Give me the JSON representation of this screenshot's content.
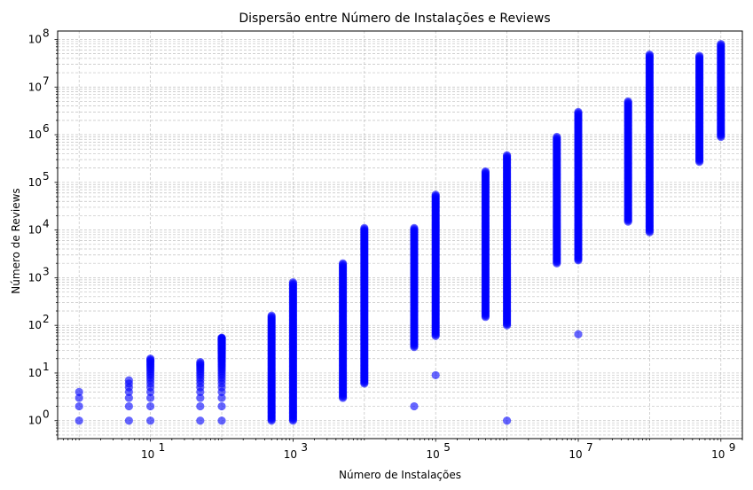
{
  "chart_data": {
    "type": "scatter",
    "title": "Dispersão entre Número de Instalações e Reviews",
    "xlabel": "Número de Instalações",
    "ylabel": "Número de Reviews",
    "xscale": "log",
    "yscale": "log",
    "xlim": [
      0.5,
      2000000000
    ],
    "ylim": [
      0.42,
      150000000
    ],
    "x_ticks": [
      {
        "value": 10,
        "base": "10",
        "exp": "1"
      },
      {
        "value": 1000,
        "base": "10",
        "exp": "3"
      },
      {
        "value": 100000,
        "base": "10",
        "exp": "5"
      },
      {
        "value": 10000000,
        "base": "10",
        "exp": "7"
      },
      {
        "value": 1000000000,
        "base": "10",
        "exp": "9"
      }
    ],
    "y_ticks": [
      {
        "value": 1,
        "base": "10",
        "exp": "0"
      },
      {
        "value": 10,
        "base": "10",
        "exp": "1"
      },
      {
        "value": 100,
        "base": "10",
        "exp": "2"
      },
      {
        "value": 1000,
        "base": "10",
        "exp": "3"
      },
      {
        "value": 10000,
        "base": "10",
        "exp": "4"
      },
      {
        "value": 100000,
        "base": "10",
        "exp": "5"
      },
      {
        "value": 1000000,
        "base": "10",
        "exp": "6"
      },
      {
        "value": 10000000,
        "base": "10",
        "exp": "7"
      },
      {
        "value": 100000000,
        "base": "10",
        "exp": "8"
      }
    ],
    "grid": true,
    "grid_style": "dashed",
    "marker_color": "#0000ff",
    "marker_alpha": 0.6,
    "series": [
      {
        "x": 1,
        "y_min": 1,
        "y_max": 4,
        "outliers": []
      },
      {
        "x": 5,
        "y_min": 1,
        "y_max": 7,
        "outliers": []
      },
      {
        "x": 10,
        "y_min": 1,
        "y_max": 20,
        "outliers": []
      },
      {
        "x": 50,
        "y_min": 1,
        "y_max": 17,
        "outliers": []
      },
      {
        "x": 100,
        "y_min": 1,
        "y_max": 55,
        "outliers": []
      },
      {
        "x": 500,
        "y_min": 1,
        "y_max": 160,
        "outliers": []
      },
      {
        "x": 1000,
        "y_min": 1,
        "y_max": 800,
        "outliers": []
      },
      {
        "x": 5000,
        "y_min": 3,
        "y_max": 2000,
        "outliers": []
      },
      {
        "x": 10000,
        "y_min": 6,
        "y_max": 11000,
        "outliers": []
      },
      {
        "x": 50000,
        "y_min": 35,
        "y_max": 11000,
        "outliers": [
          2
        ]
      },
      {
        "x": 100000,
        "y_min": 60,
        "y_max": 55000,
        "outliers": [
          9
        ]
      },
      {
        "x": 500000,
        "y_min": 150,
        "y_max": 170000,
        "outliers": []
      },
      {
        "x": 1000000,
        "y_min": 100,
        "y_max": 370000,
        "outliers": [
          1
        ]
      },
      {
        "x": 5000000,
        "y_min": 2000,
        "y_max": 900000,
        "outliers": []
      },
      {
        "x": 10000000,
        "y_min": 2300,
        "y_max": 3000000,
        "outliers": [
          65
        ]
      },
      {
        "x": 50000000,
        "y_min": 15000,
        "y_max": 5000000,
        "outliers": []
      },
      {
        "x": 100000000,
        "y_min": 9000,
        "y_max": 48000000,
        "outliers": []
      },
      {
        "x": 500000000,
        "y_min": 270000,
        "y_max": 45000000,
        "outliers": []
      },
      {
        "x": 1000000000,
        "y_min": 900000,
        "y_max": 80000000,
        "outliers": []
      }
    ]
  }
}
